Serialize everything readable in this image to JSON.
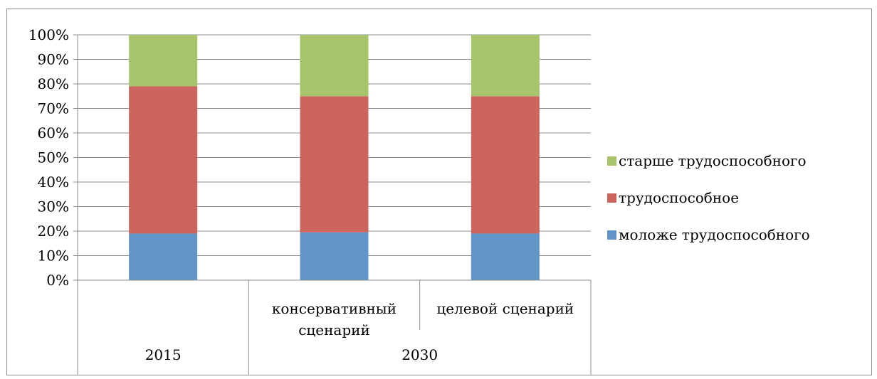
{
  "chart_data": {
    "type": "bar",
    "stacked": "percent",
    "title": "",
    "xlabel": "",
    "ylabel": "",
    "ylim": [
      0,
      100
    ],
    "y_ticks": [
      "0%",
      "10%",
      "20%",
      "30%",
      "40%",
      "50%",
      "60%",
      "70%",
      "80%",
      "90%",
      "100%"
    ],
    "grid": true,
    "legend_position": "right",
    "categories": [
      {
        "sub": "",
        "group": "2015"
      },
      {
        "sub": "консервативный сценарий",
        "sub_lines": [
          "консервативный",
          "сценарий"
        ],
        "group": "2030"
      },
      {
        "sub": "целевой сценарий",
        "sub_lines": [
          "целевой сценарий"
        ],
        "group": "2030"
      }
    ],
    "groups": [
      {
        "label": "2015",
        "count": 1
      },
      {
        "label": "2030",
        "count": 2
      }
    ],
    "series": [
      {
        "name": "моложе трудоспособного",
        "color": "#6194c9",
        "values": [
          19,
          19.5,
          19
        ]
      },
      {
        "name": "трудоспособное",
        "color": "#cd655e",
        "values": [
          60,
          55.5,
          56
        ]
      },
      {
        "name": "старше трудоспособного",
        "color": "#a8c46a",
        "values": [
          21,
          25,
          25
        ]
      }
    ],
    "legend_order": [
      2,
      1,
      0
    ]
  }
}
